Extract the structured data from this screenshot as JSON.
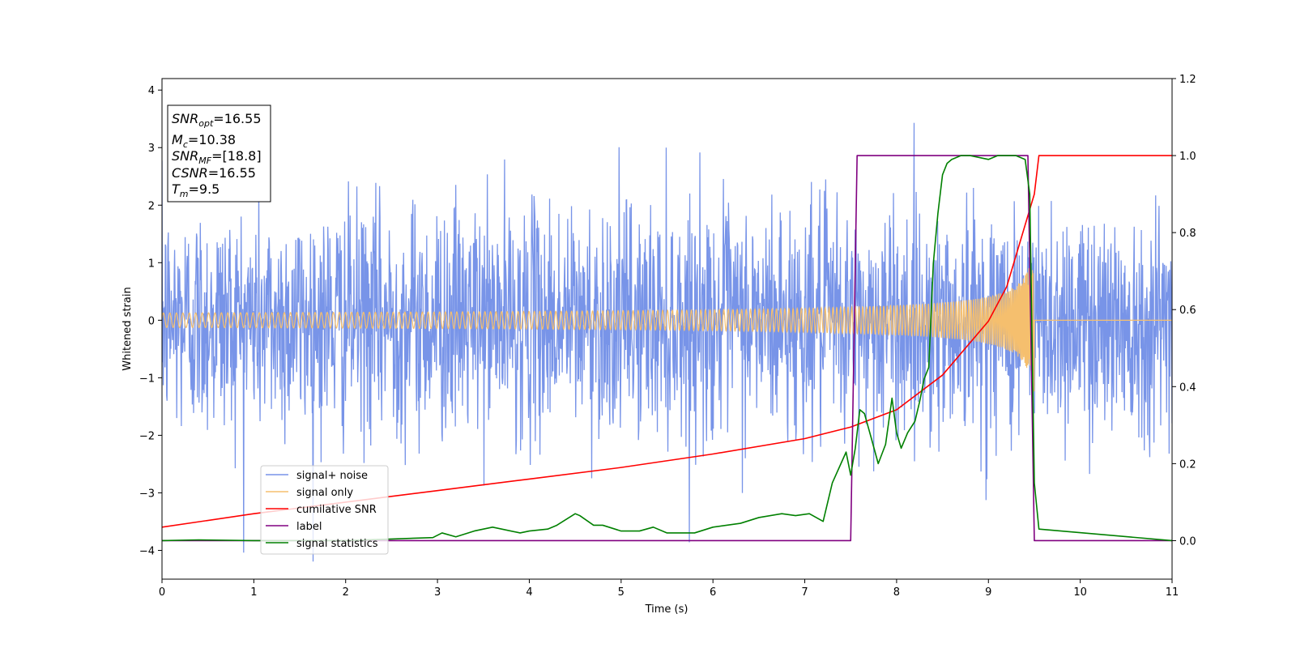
{
  "chart_data": {
    "type": "line",
    "xlabel": "Time (s)",
    "ylabel": "Whitened strain",
    "xlim": [
      0,
      11
    ],
    "ylim": [
      -4.5,
      4.2
    ],
    "y2lim": [
      -0.1,
      1.2
    ],
    "xticks": [
      "0",
      "1",
      "2",
      "3",
      "4",
      "5",
      "6",
      "7",
      "8",
      "9",
      "10",
      "11"
    ],
    "yticks": [
      "4",
      "3",
      "2",
      "1",
      "0",
      "−1",
      "−2",
      "−3",
      "−4"
    ],
    "y2ticks": [
      "1.2",
      "1.0",
      "0.8",
      "0.6",
      "0.4",
      "0.2",
      "0.0"
    ],
    "grid": false,
    "legend_position": "lower-left",
    "info_box": {
      "snr_opt": {
        "main": "SNR",
        "sub": "opt",
        "value": "=16.55"
      },
      "mc": {
        "main": "M",
        "sub": "c",
        "value": "=10.38"
      },
      "snr_mf": {
        "main": "SNR",
        "sub": "MF",
        "value": "=[18.8]"
      },
      "csnr": {
        "main": "CSNR",
        "value": "=16.55"
      },
      "tm": {
        "main": "T",
        "sub": "m",
        "value": "=9.5"
      }
    },
    "series": [
      {
        "name": "signal+ noise",
        "color": "#7894e8",
        "axis": "left",
        "kind": "gaussian-noise",
        "std": 1.0,
        "x_range": [
          0,
          11
        ]
      },
      {
        "name": "signal only",
        "color": "#f5bf6e",
        "axis": "left",
        "kind": "chirp",
        "t_merge": 9.5,
        "amp_start": 0.05,
        "amp_end": 1.3,
        "x_range": [
          0,
          11
        ]
      },
      {
        "name": "cumilative SNR",
        "color": "#ff0000",
        "axis": "right",
        "x": [
          0,
          1,
          2,
          3,
          4,
          5,
          6,
          7,
          7.5,
          8,
          8.5,
          9,
          9.2,
          9.4,
          9.5,
          9.55,
          11
        ],
        "y": [
          0.035,
          0.07,
          0.1,
          0.13,
          0.16,
          0.19,
          0.225,
          0.265,
          0.295,
          0.34,
          0.43,
          0.57,
          0.66,
          0.82,
          0.9,
          1.0,
          1.0
        ]
      },
      {
        "name": "label",
        "color": "#800080",
        "axis": "right",
        "x": [
          0,
          7.5,
          7.57,
          9.43,
          9.5,
          11
        ],
        "y": [
          0.0,
          0.0,
          1.0,
          1.0,
          0.0,
          0.0
        ]
      },
      {
        "name": "signal statistics",
        "color": "#008000",
        "axis": "right",
        "x": [
          0,
          0.4,
          1.0,
          2.0,
          2.6,
          2.95,
          3.05,
          3.2,
          3.4,
          3.6,
          3.7,
          3.9,
          4.0,
          4.2,
          4.3,
          4.5,
          4.55,
          4.7,
          4.8,
          5.0,
          5.2,
          5.35,
          5.5,
          5.8,
          6.0,
          6.3,
          6.5,
          6.75,
          6.9,
          7.05,
          7.2,
          7.3,
          7.45,
          7.5,
          7.55,
          7.6,
          7.65,
          7.72,
          7.8,
          7.88,
          7.95,
          8.0,
          8.05,
          8.12,
          8.2,
          8.25,
          8.3,
          8.35,
          8.4,
          8.45,
          8.5,
          8.55,
          8.6,
          8.7,
          8.8,
          9.0,
          9.1,
          9.3,
          9.4,
          9.45,
          9.5,
          9.55,
          11
        ],
        "y": [
          0.0,
          0.002,
          0.0,
          0.0,
          0.005,
          0.008,
          0.02,
          0.01,
          0.025,
          0.035,
          0.03,
          0.02,
          0.025,
          0.03,
          0.04,
          0.07,
          0.065,
          0.04,
          0.04,
          0.025,
          0.025,
          0.035,
          0.02,
          0.02,
          0.035,
          0.045,
          0.06,
          0.07,
          0.065,
          0.07,
          0.05,
          0.15,
          0.23,
          0.17,
          0.24,
          0.34,
          0.33,
          0.27,
          0.2,
          0.25,
          0.37,
          0.28,
          0.24,
          0.28,
          0.31,
          0.36,
          0.42,
          0.45,
          0.72,
          0.85,
          0.95,
          0.98,
          0.99,
          1.0,
          1.0,
          0.99,
          1.0,
          1.0,
          0.99,
          0.9,
          0.15,
          0.03,
          0.0
        ]
      }
    ]
  }
}
